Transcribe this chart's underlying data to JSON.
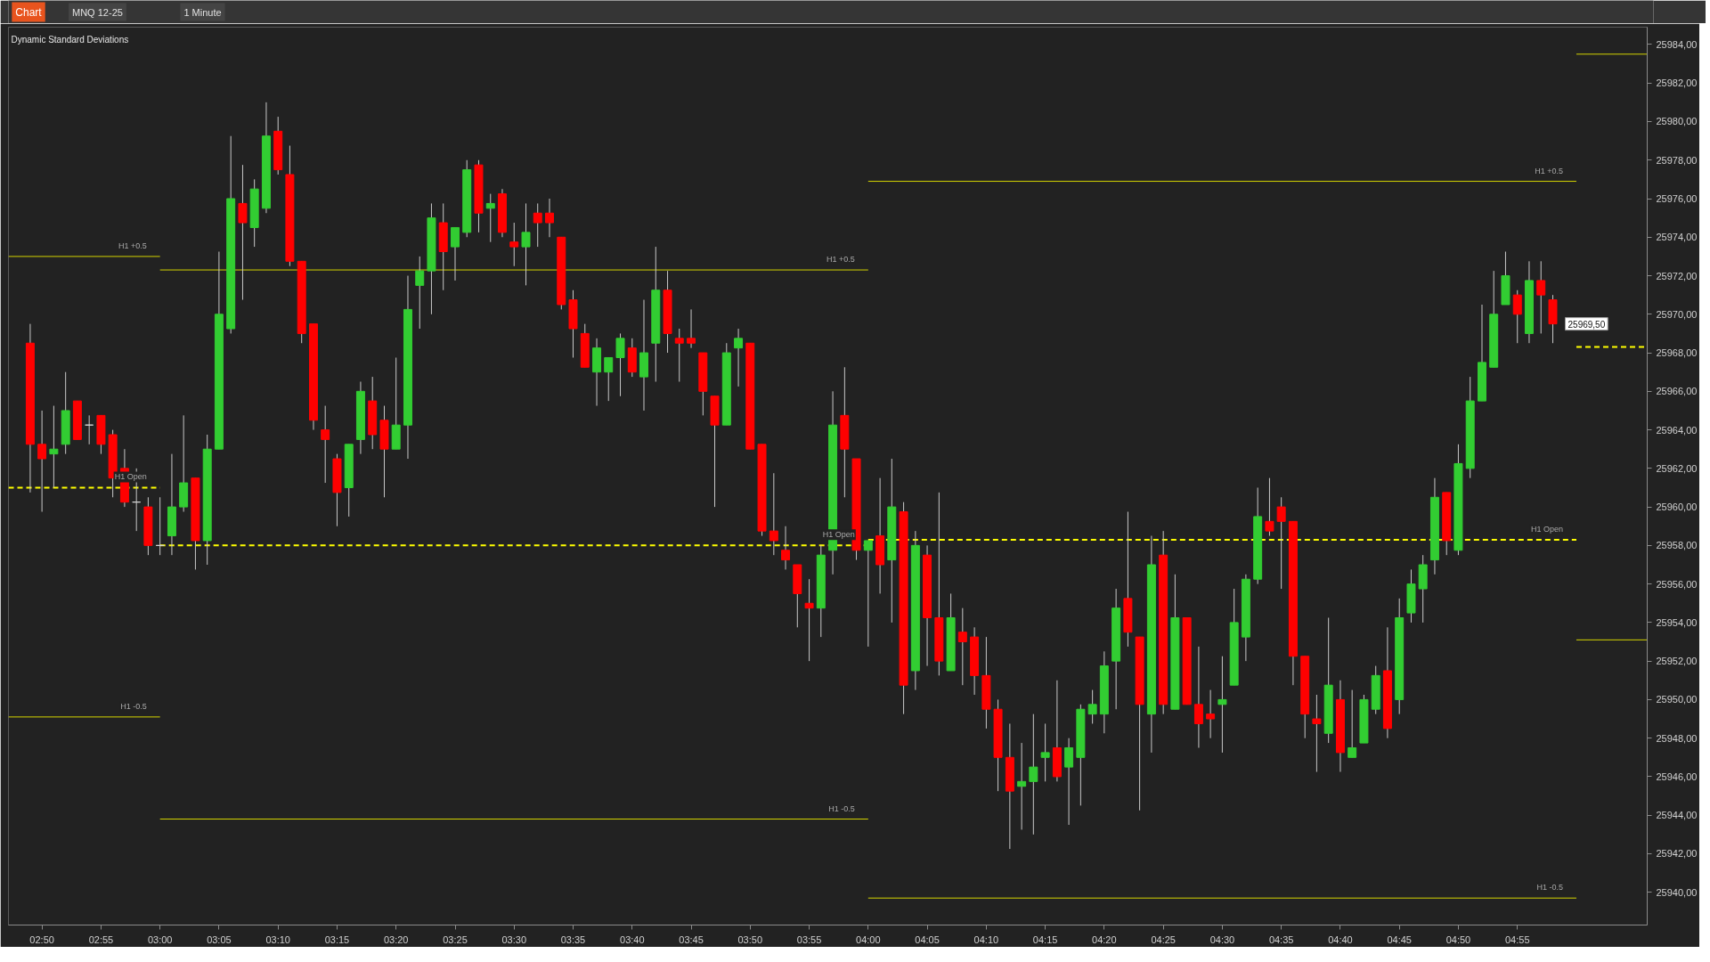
{
  "chart_data": {
    "type": "candlestick",
    "title": "Dynamic Standard Deviations",
    "x": [
      2.8167,
      2.8333,
      2.85,
      2.8667,
      2.8833,
      2.9,
      2.9167,
      2.9333,
      2.95,
      2.9667,
      2.9833,
      3,
      3.0167,
      3.0333,
      3.05,
      3.0667,
      3.0833,
      3.1,
      3.1167,
      3.1333,
      3.15,
      3.1667,
      3.1833,
      3.2,
      3.2167,
      3.2333,
      3.25,
      3.2667,
      3.2833,
      3.3,
      3.3167,
      3.3333,
      3.35,
      3.3667,
      3.3833,
      3.4,
      3.4167,
      3.4333,
      3.45,
      3.4667,
      3.4833,
      3.5,
      3.5167,
      3.5333,
      3.55,
      3.5667,
      3.5833,
      3.6,
      3.6167,
      3.6333,
      3.65,
      3.6667,
      3.6833,
      3.7,
      3.7167,
      3.7333,
      3.75,
      3.7667,
      3.7833,
      3.8,
      3.8167,
      3.8333,
      3.85,
      3.8667,
      3.8833,
      3.9,
      3.9167,
      3.9333,
      3.95,
      3.9667,
      3.9833,
      4,
      4.0167,
      4.0333,
      4.05,
      4.0667,
      4.0833,
      4.1,
      4.1167,
      4.1333,
      4.15,
      4.1667,
      4.1833,
      4.2,
      4.2167,
      4.2333,
      4.25,
      4.2667,
      4.2833,
      4.3,
      4.3167,
      4.3333,
      4.35,
      4.3667,
      4.3833,
      4.4,
      4.4167,
      4.4333,
      4.45,
      4.4667,
      4.4833,
      4.5,
      4.5167,
      4.5333,
      4.55,
      4.5667,
      4.5833,
      4.6,
      4.6167,
      4.6333,
      4.65,
      4.6667,
      4.6833,
      4.7,
      4.7167,
      4.7333,
      4.75,
      4.7667,
      4.7833,
      4.8,
      4.8167,
      4.8333,
      4.85,
      4.8667,
      4.8833,
      4.9,
      4.9167,
      4.9333,
      4.95,
      4.9667
    ],
    "ohlc": [
      [
        25968.5,
        25969.5,
        25960.75,
        25963.25
      ],
      [
        25963.25,
        25965.0,
        25959.75,
        25962.5
      ],
      [
        25962.75,
        25965.25,
        25961.0,
        25963.0
      ],
      [
        25963.25,
        25967.0,
        25962.75,
        25965.0
      ],
      [
        25965.5,
        25965.5,
        25963.5,
        25963.5
      ],
      [
        25964.25,
        25964.75,
        25963.25,
        25964.25
      ],
      [
        25964.75,
        25964.75,
        25962.75,
        25963.25
      ],
      [
        25963.75,
        25964.0,
        25960.5,
        25961.5
      ],
      [
        25962.0,
        25963.0,
        25960.0,
        25960.25
      ],
      [
        25960.25,
        25962.0,
        25958.75,
        25960.25
      ],
      [
        25960.0,
        25960.5,
        25957.5,
        25958.0
      ],
      [
        25958.0,
        25960.5,
        25957.5,
        25958.0
      ],
      [
        25958.5,
        25962.75,
        25957.5,
        25960.0
      ],
      [
        25960.0,
        25964.75,
        25959.75,
        25961.25
      ],
      [
        25961.5,
        25961.5,
        25956.75,
        25958.25
      ],
      [
        25958.25,
        25963.75,
        25957.0,
        25963.0
      ],
      [
        25963.0,
        25973.25,
        25963.0,
        25970.0
      ],
      [
        25969.25,
        25979.25,
        25969.0,
        25976.0
      ],
      [
        25975.75,
        25977.75,
        25970.75,
        25974.75
      ],
      [
        25974.5,
        25977.0,
        25973.5,
        25976.5
      ],
      [
        25975.5,
        25981.0,
        25975.25,
        25979.25
      ],
      [
        25979.5,
        25980.25,
        25977.25,
        25977.5
      ],
      [
        25977.25,
        25978.75,
        25972.5,
        25972.75
      ],
      [
        25972.75,
        25972.75,
        25968.5,
        25969.0
      ],
      [
        25969.5,
        25969.5,
        25964.0,
        25964.5
      ],
      [
        25964.0,
        25965.25,
        25961.25,
        25963.5
      ],
      [
        25962.5,
        25962.75,
        25959.0,
        25960.75
      ],
      [
        25961.0,
        25963.25,
        25959.5,
        25963.25
      ],
      [
        25963.5,
        25966.5,
        25962.75,
        25966.0
      ],
      [
        25965.5,
        25966.75,
        25963.0,
        25963.75
      ],
      [
        25964.5,
        25965.25,
        25960.5,
        25963.0
      ],
      [
        25963.0,
        25967.75,
        25963.0,
        25964.25
      ],
      [
        25964.25,
        25972.0,
        25962.5,
        25970.25
      ],
      [
        25971.5,
        25973.0,
        25969.25,
        25972.25
      ],
      [
        25972.25,
        25975.75,
        25970.0,
        25975.0
      ],
      [
        25974.75,
        25975.75,
        25971.25,
        25973.25
      ],
      [
        25973.5,
        25974.5,
        25971.75,
        25974.5
      ],
      [
        25974.25,
        25978.0,
        25974.0,
        25977.5
      ],
      [
        25977.75,
        25978.0,
        25974.25,
        25975.25
      ],
      [
        25975.5,
        25976.25,
        25973.75,
        25975.75
      ],
      [
        25976.25,
        25976.5,
        25974.0,
        25974.25
      ],
      [
        25973.75,
        25974.75,
        25972.5,
        25973.5
      ],
      [
        25973.5,
        25975.75,
        25971.5,
        25974.25
      ],
      [
        25975.25,
        25975.75,
        25973.5,
        25974.75
      ],
      [
        25975.25,
        25976.0,
        25974.0,
        25974.75
      ],
      [
        25974.0,
        25974.0,
        25970.25,
        25970.5
      ],
      [
        25970.75,
        25971.25,
        25967.75,
        25969.25
      ],
      [
        25969.0,
        25969.5,
        25967.25,
        25967.25
      ],
      [
        25967.0,
        25968.75,
        25965.25,
        25968.25
      ],
      [
        25967.0,
        25967.75,
        25965.5,
        25967.75
      ],
      [
        25967.75,
        25969.0,
        25965.75,
        25968.75
      ],
      [
        25968.25,
        25968.75,
        25966.75,
        25967.0
      ],
      [
        25966.75,
        25970.75,
        25965.0,
        25968.0
      ],
      [
        25968.5,
        25973.5,
        25966.5,
        25971.25
      ],
      [
        25971.25,
        25972.25,
        25968.0,
        25969.0
      ],
      [
        25968.75,
        25969.25,
        25966.5,
        25968.5
      ],
      [
        25968.75,
        25970.25,
        25968.25,
        25968.5
      ],
      [
        25968.0,
        25968.0,
        25964.75,
        25966.0
      ],
      [
        25965.75,
        25965.75,
        25960.0,
        25964.25
      ],
      [
        25964.25,
        25968.5,
        25964.25,
        25968.0
      ],
      [
        25968.25,
        25969.25,
        25966.25,
        25968.75
      ],
      [
        25968.5,
        25968.5,
        25963.0,
        25963.0
      ],
      [
        25963.25,
        25963.25,
        25958.5,
        25958.75
      ],
      [
        25958.75,
        25961.75,
        25957.5,
        25958.25
      ],
      [
        25957.75,
        25959.0,
        25956.75,
        25957.25
      ],
      [
        25957.0,
        25957.0,
        25953.75,
        25955.5
      ],
      [
        25955.0,
        25956.25,
        25952.0,
        25954.75
      ],
      [
        25954.75,
        25958.0,
        25953.25,
        25957.5
      ],
      [
        25957.75,
        25966.0,
        25956.5,
        25964.25
      ],
      [
        25964.75,
        25967.25,
        25960.5,
        25963.0
      ],
      [
        25962.5,
        25962.5,
        25957.25,
        25957.75
      ],
      [
        25957.75,
        25958.25,
        25952.75,
        25958.25
      ],
      [
        25958.5,
        25961.5,
        25955.5,
        25957.0
      ],
      [
        25957.25,
        25962.5,
        25954.0,
        25960.0
      ],
      [
        25959.75,
        25960.25,
        25949.25,
        25950.75
      ],
      [
        25951.5,
        25958.75,
        25950.5,
        25958.0
      ],
      [
        25957.5,
        25958.0,
        25951.75,
        25954.25
      ],
      [
        25954.25,
        25960.75,
        25951.25,
        25952.0
      ],
      [
        25951.5,
        25955.5,
        25951.5,
        25954.25
      ],
      [
        25953.5,
        25954.75,
        25950.75,
        25953.0
      ],
      [
        25953.25,
        25953.75,
        25950.25,
        25951.25
      ],
      [
        25951.25,
        25953.25,
        25948.5,
        25949.5
      ],
      [
        25949.5,
        25950.0,
        25945.25,
        25947.0
      ],
      [
        25947.0,
        25948.75,
        25942.25,
        25945.25
      ],
      [
        25945.5,
        25947.75,
        25943.25,
        25945.75
      ],
      [
        25945.75,
        25949.25,
        25943.0,
        25946.5
      ],
      [
        25947.0,
        25948.75,
        25945.75,
        25947.25
      ],
      [
        25947.5,
        25951.0,
        25945.75,
        25946.0
      ],
      [
        25946.5,
        25948.0,
        25943.5,
        25947.5
      ],
      [
        25947.0,
        25949.75,
        25944.5,
        25949.5
      ],
      [
        25949.25,
        25950.5,
        25948.75,
        25949.75
      ],
      [
        25949.25,
        25952.5,
        25948.25,
        25951.75
      ],
      [
        25952.0,
        25955.75,
        25949.5,
        25954.75
      ],
      [
        25955.25,
        25959.75,
        25952.75,
        25953.5
      ],
      [
        25953.25,
        25953.25,
        25944.25,
        25949.75
      ],
      [
        25949.25,
        25958.5,
        25947.25,
        25957.0
      ],
      [
        25957.5,
        25958.75,
        25949.25,
        25949.75
      ],
      [
        25949.5,
        25956.5,
        25949.5,
        25954.25
      ],
      [
        25954.25,
        25954.25,
        25949.75,
        25949.75
      ],
      [
        25949.75,
        25952.75,
        25947.5,
        25948.75
      ],
      [
        25949.25,
        25950.5,
        25948.0,
        25949.0
      ],
      [
        25949.75,
        25952.25,
        25947.25,
        25950.0
      ],
      [
        25950.75,
        25955.75,
        25950.75,
        25954.0
      ],
      [
        25953.25,
        25956.5,
        25952.0,
        25956.25
      ],
      [
        25956.25,
        25961.0,
        25956.0,
        25959.5
      ],
      [
        25959.25,
        25961.5,
        25958.5,
        25958.75
      ],
      [
        25960.0,
        25960.5,
        25955.75,
        25959.25
      ],
      [
        25959.25,
        25959.25,
        25950.75,
        25952.25
      ],
      [
        25952.25,
        25952.25,
        25948.0,
        25949.25
      ],
      [
        25949.0,
        25950.25,
        25946.25,
        25948.75
      ],
      [
        25948.25,
        25954.25,
        25947.75,
        25950.75
      ],
      [
        25950.0,
        25951.0,
        25946.25,
        25947.25
      ],
      [
        25947.0,
        25950.5,
        25947.0,
        25947.5
      ],
      [
        25947.75,
        25950.25,
        25947.75,
        25950.0
      ],
      [
        25949.5,
        25951.75,
        25949.25,
        25951.25
      ],
      [
        25951.5,
        25953.75,
        25948.0,
        25948.5
      ],
      [
        25950.0,
        25955.25,
        25949.25,
        25954.25
      ],
      [
        25954.5,
        25956.75,
        25954.0,
        25956.0
      ],
      [
        25955.75,
        25957.5,
        25954.0,
        25957.0
      ],
      [
        25957.25,
        25961.5,
        25956.5,
        25960.5
      ],
      [
        25960.75,
        25960.75,
        25957.5,
        25958.25
      ],
      [
        25957.75,
        25963.25,
        25957.5,
        25962.25
      ],
      [
        25962.0,
        25966.75,
        25961.5,
        25965.5
      ],
      [
        25965.5,
        25970.5,
        25965.5,
        25967.5
      ],
      [
        25967.25,
        25972.25,
        25967.25,
        25970.0
      ],
      [
        25970.5,
        25973.25,
        25970.5,
        25972.0
      ],
      [
        25971.0,
        25971.25,
        25968.5,
        25970.0
      ],
      [
        25969.0,
        25972.75,
        25968.5,
        25971.75
      ],
      [
        25971.75,
        25972.75,
        25969.0,
        25971.0
      ],
      [
        25970.75,
        25971.0,
        25968.5,
        25969.5
      ]
    ],
    "colors": [
      "#ff0000",
      "#ff0000",
      "#32cd32",
      "#32cd32",
      "#ff0000",
      "#d3d3d3",
      "#ff0000",
      "#ff0000",
      "#ff0000",
      "#d3d3d3",
      "#ff0000",
      "#d3d3d3",
      "#32cd32",
      "#32cd32",
      "#ff0000",
      "#32cd32",
      "#32cd32",
      "#32cd32",
      "#ff0000",
      "#32cd32",
      "#32cd32",
      "#ff0000",
      "#ff0000",
      "#ff0000",
      "#ff0000",
      "#ff0000",
      "#ff0000",
      "#32cd32",
      "#32cd32",
      "#ff0000",
      "#ff0000",
      "#32cd32",
      "#32cd32",
      "#32cd32",
      "#32cd32",
      "#ff0000",
      "#32cd32",
      "#32cd32",
      "#ff0000",
      "#32cd32",
      "#ff0000",
      "#ff0000",
      "#32cd32",
      "#ff0000",
      "#ff0000",
      "#ff0000",
      "#ff0000",
      "#ff0000",
      "#32cd32",
      "#32cd32",
      "#32cd32",
      "#ff0000",
      "#32cd32",
      "#32cd32",
      "#ff0000",
      "#ff0000",
      "#ff0000",
      "#ff0000",
      "#ff0000",
      "#32cd32",
      "#32cd32",
      "#ff0000",
      "#ff0000",
      "#ff0000",
      "#ff0000",
      "#ff0000",
      "#ff0000",
      "#32cd32",
      "#32cd32",
      "#ff0000",
      "#ff0000",
      "#32cd32",
      "#ff0000",
      "#32cd32",
      "#ff0000",
      "#32cd32",
      "#ff0000",
      "#ff0000",
      "#32cd32",
      "#ff0000",
      "#ff0000",
      "#ff0000",
      "#ff0000",
      "#ff0000",
      "#32cd32",
      "#32cd32",
      "#32cd32",
      "#ff0000",
      "#32cd32",
      "#32cd32",
      "#32cd32",
      "#32cd32",
      "#32cd32",
      "#ff0000",
      "#ff0000",
      "#32cd32",
      "#ff0000",
      "#32cd32",
      "#ff0000",
      "#ff0000",
      "#ff0000",
      "#32cd32",
      "#32cd32",
      "#32cd32",
      "#32cd32",
      "#ff0000",
      "#ff0000",
      "#ff0000",
      "#ff0000",
      "#ff0000",
      "#32cd32",
      "#ff0000",
      "#32cd32",
      "#32cd32",
      "#32cd32",
      "#ff0000",
      "#32cd32",
      "#32cd32",
      "#32cd32",
      "#32cd32",
      "#ff0000",
      "#32cd32",
      "#32cd32",
      "#32cd32",
      "#32cd32",
      "#32cd32",
      "#ff0000",
      "#32cd32",
      "#ff0000",
      "#ff0000"
    ],
    "series": [
      {
        "type": "line",
        "name": "H1 +0.5",
        "color": "#d4d400",
        "x": [
          2.786,
          3
        ],
        "values": [
          25973.0,
          25973.0
        ]
      },
      {
        "type": "line",
        "name": "H1 Open",
        "color": "#ffff00",
        "line_style": "dashed",
        "x": [
          2.786,
          3
        ],
        "values": [
          25961.0,
          25961.0
        ]
      },
      {
        "type": "line",
        "name": "H1 -0.5",
        "color": "#d4d400",
        "x": [
          2.786,
          3
        ],
        "values": [
          25949.1,
          25949.1
        ]
      },
      {
        "type": "line",
        "name": "H1 +0.5",
        "color": "#d4d400",
        "x": [
          3,
          4
        ],
        "values": [
          25972.3,
          25972.3
        ]
      },
      {
        "type": "line",
        "name": "H1 Open",
        "color": "#ffff00",
        "line_style": "dashed",
        "x": [
          3,
          4
        ],
        "values": [
          25958.0,
          25958.0
        ]
      },
      {
        "type": "line",
        "name": "H1 -0.5",
        "color": "#d4d400",
        "x": [
          3,
          4
        ],
        "values": [
          25943.8,
          25943.8
        ]
      },
      {
        "type": "line",
        "name": "H1 +0.5",
        "color": "#d4d400",
        "x": [
          4,
          5
        ],
        "values": [
          25976.9,
          25976.9
        ]
      },
      {
        "type": "line",
        "name": "H1 Open",
        "color": "#ffff00",
        "line_style": "dashed",
        "x": [
          4,
          5
        ],
        "values": [
          25958.3,
          25958.3
        ]
      },
      {
        "type": "line",
        "name": "H1 -0.5",
        "color": "#d4d400",
        "x": [
          4,
          5
        ],
        "values": [
          25939.7,
          25939.7
        ]
      },
      {
        "type": "line",
        "color": "#d4d400",
        "x": [
          5,
          5.1
        ],
        "values": [
          25983.5,
          25983.5
        ]
      },
      {
        "type": "line",
        "color": "#ffff00",
        "line_style": "dashed",
        "x": [
          5,
          5.1
        ],
        "values": [
          25968.3,
          25968.3
        ]
      },
      {
        "type": "line",
        "color": "#d4d400",
        "x": [
          5,
          5.1
        ],
        "values": [
          25953.1,
          25953.1
        ]
      }
    ],
    "xlim": [
      2.786,
      5.1
    ],
    "ylim": [
      25938.3,
      25984.9
    ],
    "xticks": [
      {
        "value": 2.8333,
        "label": "02:50"
      },
      {
        "value": 2.9167,
        "label": "02:55"
      },
      {
        "value": 3,
        "label": "03:00"
      },
      {
        "value": 3.0833,
        "label": "03:05"
      },
      {
        "value": 3.1667,
        "label": "03:10"
      },
      {
        "value": 3.25,
        "label": "03:15"
      },
      {
        "value": 3.3333,
        "label": "03:20"
      },
      {
        "value": 3.4167,
        "label": "03:25"
      },
      {
        "value": 3.5,
        "label": "03:30"
      },
      {
        "value": 3.5833,
        "label": "03:35"
      },
      {
        "value": 3.6667,
        "label": "03:40"
      },
      {
        "value": 3.75,
        "label": "03:45"
      },
      {
        "value": 3.8333,
        "label": "03:50"
      },
      {
        "value": 3.9167,
        "label": "03:55"
      },
      {
        "value": 4,
        "label": "04:00"
      },
      {
        "value": 4.0833,
        "label": "04:05"
      },
      {
        "value": 4.1667,
        "label": "04:10"
      },
      {
        "value": 4.25,
        "label": "04:15"
      },
      {
        "value": 4.3333,
        "label": "04:20"
      },
      {
        "value": 4.4167,
        "label": "04:25"
      },
      {
        "value": 4.5,
        "label": "04:30"
      },
      {
        "value": 4.5833,
        "label": "04:35"
      },
      {
        "value": 4.6667,
        "label": "04:40"
      },
      {
        "value": 4.75,
        "label": "04:45"
      },
      {
        "value": 4.8333,
        "label": "04:50"
      },
      {
        "value": 4.9167,
        "label": "04:55"
      }
    ],
    "yticks": [
      {
        "value": 25940,
        "label": "25940,00"
      },
      {
        "value": 25942,
        "label": "25942,00"
      },
      {
        "value": 25944,
        "label": "25944,00"
      },
      {
        "value": 25946,
        "label": "25946,00"
      },
      {
        "value": 25948,
        "label": "25948,00"
      },
      {
        "value": 25950,
        "label": "25950,00"
      },
      {
        "value": 25952,
        "label": "25952,00"
      },
      {
        "value": 25954,
        "label": "25954,00"
      },
      {
        "value": 25956,
        "label": "25956,00"
      },
      {
        "value": 25958,
        "label": "25958,00"
      },
      {
        "value": 25960,
        "label": "25960,00"
      },
      {
        "value": 25962,
        "label": "25962,00"
      },
      {
        "value": 25964,
        "label": "25964,00"
      },
      {
        "value": 25966,
        "label": "25966,00"
      },
      {
        "value": 25968,
        "label": "25968,00"
      },
      {
        "value": 25970,
        "label": "25970,00"
      },
      {
        "value": 25972,
        "label": "25972,00"
      },
      {
        "value": 25974,
        "label": "25974,00"
      },
      {
        "value": 25976,
        "label": "25976,00"
      },
      {
        "value": 25978,
        "label": "25978,00"
      },
      {
        "value": 25980,
        "label": "25980,00"
      },
      {
        "value": 25982,
        "label": "25982,00"
      },
      {
        "value": 25984,
        "label": "25984,00"
      }
    ],
    "annotations": [
      "Chart",
      "MNQ 12-25",
      "1 Minute",
      {
        "text": "25969,50",
        "x": 4.9667,
        "y": 25969.5
      }
    ]
  }
}
